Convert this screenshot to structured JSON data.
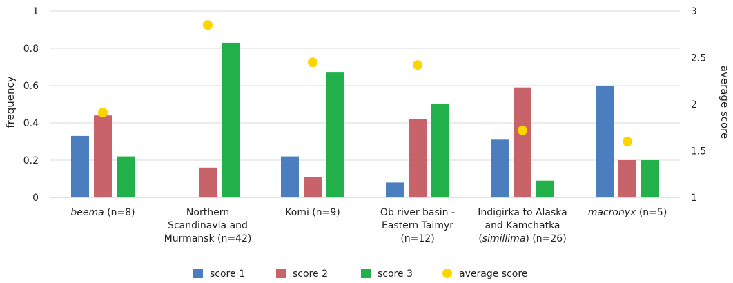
{
  "chart_data": {
    "type": "bar",
    "categories": [
      {
        "lines": [
          [
            {
              "t": "beema",
              "i": true
            },
            {
              "t": " (n=8)",
              "i": false
            }
          ]
        ]
      },
      {
        "lines": [
          [
            {
              "t": "Northern",
              "i": false
            }
          ],
          [
            {
              "t": "Scandinavia and",
              "i": false
            }
          ],
          [
            {
              "t": "Murmansk (n=42)",
              "i": false
            }
          ]
        ]
      },
      {
        "lines": [
          [
            {
              "t": "Komi (n=9)",
              "i": false
            }
          ]
        ]
      },
      {
        "lines": [
          [
            {
              "t": "Ob river basin -",
              "i": false
            }
          ],
          [
            {
              "t": "Eastern Taimyr",
              "i": false
            }
          ],
          [
            {
              "t": "(n=12)",
              "i": false
            }
          ]
        ]
      },
      {
        "lines": [
          [
            {
              "t": "Indigirka to Alaska",
              "i": false
            }
          ],
          [
            {
              "t": "and Kamchatka",
              "i": false
            }
          ],
          [
            {
              "t": "(",
              "i": false
            },
            {
              "t": "simillima",
              "i": true
            },
            {
              "t": ") (n=26)",
              "i": false
            }
          ]
        ]
      },
      {
        "lines": [
          [
            {
              "t": "macronyx",
              "i": true
            },
            {
              "t": " (n=5)",
              "i": false
            }
          ]
        ]
      }
    ],
    "series": [
      {
        "name": "score 1",
        "color": "#4a7ebf",
        "values": [
          0.33,
          0.0,
          0.22,
          0.08,
          0.31,
          0.6
        ]
      },
      {
        "name": "score 2",
        "color": "#c9636a",
        "values": [
          0.44,
          0.16,
          0.11,
          0.42,
          0.59,
          0.2
        ]
      },
      {
        "name": "score 3",
        "color": "#22b04b",
        "values": [
          0.22,
          0.83,
          0.67,
          0.5,
          0.09,
          0.2
        ]
      }
    ],
    "average": {
      "name": "average score",
      "color": "#ffd500",
      "values": [
        1.91,
        2.85,
        2.45,
        2.42,
        1.72,
        1.6
      ]
    },
    "ylabel": "frequency",
    "y2label": "average score",
    "ylim": [
      0,
      1
    ],
    "y2lim": [
      1,
      3
    ],
    "yticks": [
      "0",
      "0.2",
      "0.4",
      "0.6",
      "0.8",
      "1"
    ],
    "yticks_values": [
      0,
      0.2,
      0.4,
      0.6,
      0.8,
      1
    ],
    "y2ticks": [
      "1",
      "1.5",
      "2",
      "2.5",
      "3"
    ],
    "y2ticks_values": [
      1,
      1.5,
      2,
      2.5,
      3
    ],
    "legend_position": "bottom"
  }
}
